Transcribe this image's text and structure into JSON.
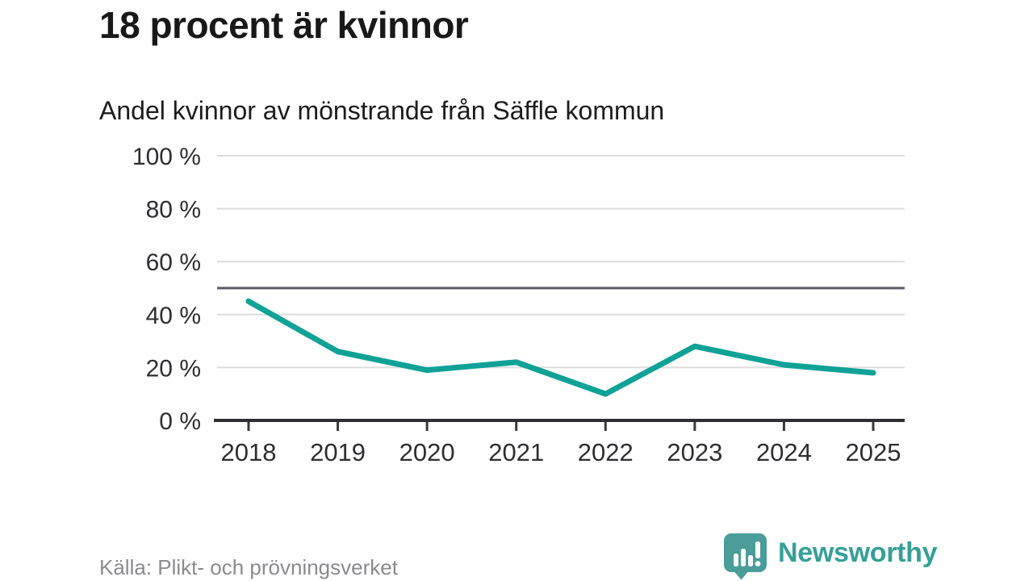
{
  "header": {
    "title": "18 procent är kvinnor",
    "subtitle": "Andel kvinnor av mönstrande från Säffle kommun"
  },
  "footer": {
    "source": "Källa: Plikt- och prövningsverket",
    "brand_name": "Newsworthy",
    "logo_icon": "bar-chart-speech-bubble-icon"
  },
  "colors": {
    "line": "#10a296",
    "grid": "#dcdcdc",
    "reference": "#5a5a64",
    "axis": "#2e2e33",
    "tick": "#3a3a3f",
    "label": "#2e2e33",
    "source_text": "#8a8a90",
    "brand": "#35a098",
    "logo_bubble": "#4a9d98"
  },
  "chart_data": {
    "type": "line",
    "title": "18 procent är kvinnor",
    "subtitle": "Andel kvinnor av mönstrande från Säffle kommun",
    "categories": [
      "2018",
      "2019",
      "2020",
      "2021",
      "2022",
      "2023",
      "2024",
      "2025"
    ],
    "values": [
      45,
      26,
      19,
      22,
      10,
      28,
      21,
      18
    ],
    "series_name": "Andel kvinnor av mönstrande",
    "unit": "%",
    "ylim": [
      0,
      100
    ],
    "yticks": [
      0,
      20,
      40,
      60,
      80,
      100
    ],
    "ytick_labels": [
      "0 %",
      "20 %",
      "40 %",
      "60 %",
      "80 %",
      "100 %"
    ],
    "reference_line": 50,
    "grid": true,
    "legend": false,
    "source": "Källa: Plikt- och prövningsverket"
  }
}
